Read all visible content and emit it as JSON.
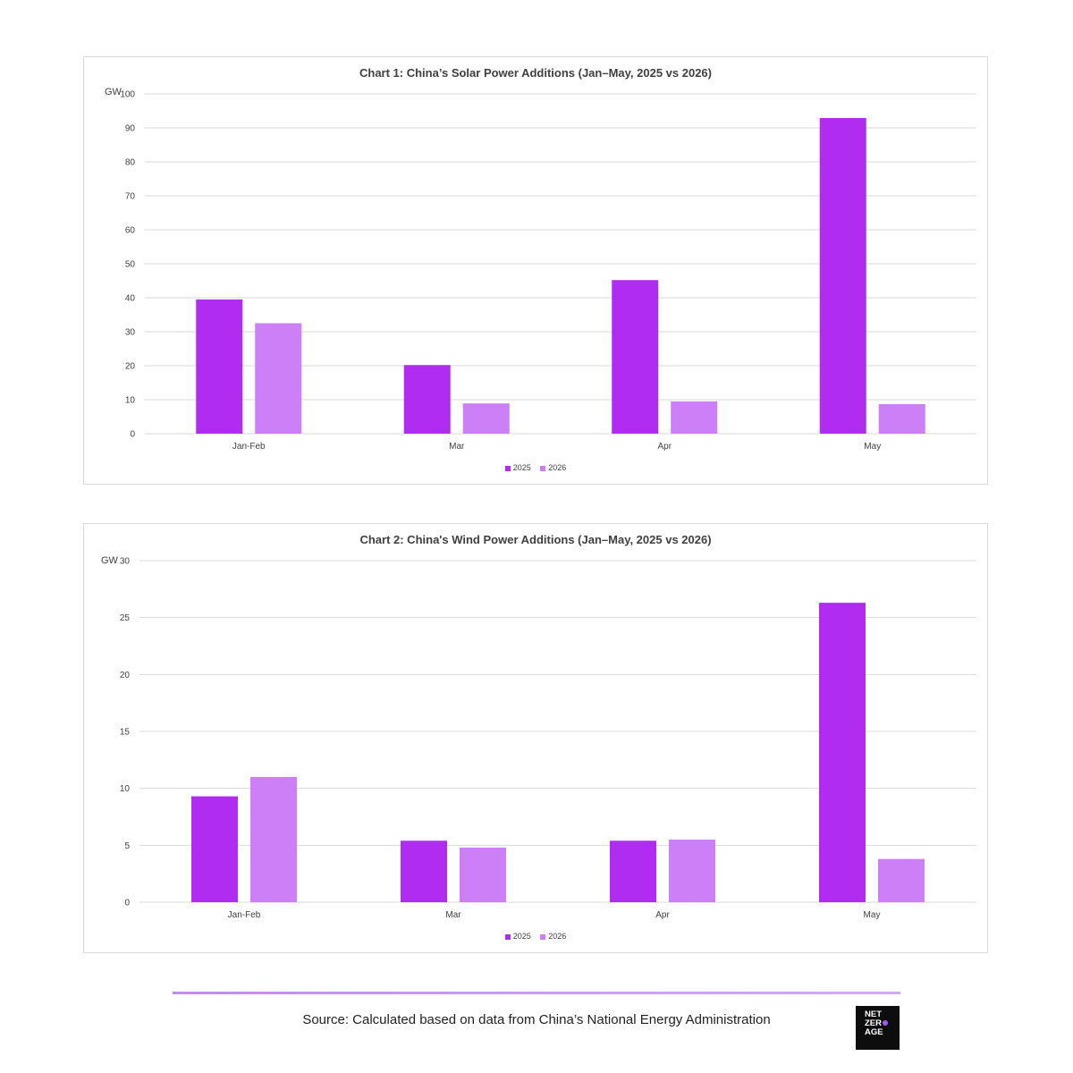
{
  "colors": {
    "series_2025": "#b02cf0",
    "series_2026": "#cd7ff7",
    "grid": "#d9d9d9",
    "text": "#404040",
    "accent_line": "#c58af5"
  },
  "chart_data": [
    {
      "type": "bar",
      "title": "Chart 1: China’s Solar Power Additions (Jan–May, 2025 vs 2026)",
      "ylabel": "GW",
      "categories": [
        "Jan-Feb",
        "Mar",
        "Apr",
        "May"
      ],
      "ylim": [
        0,
        100
      ],
      "yticks": [
        0,
        10,
        20,
        30,
        40,
        50,
        60,
        70,
        80,
        90,
        100
      ],
      "grid": true,
      "legend": "bottom",
      "series": [
        {
          "name": "2025",
          "values": [
            39.5,
            20.2,
            45.2,
            92.9
          ]
        },
        {
          "name": "2026",
          "values": [
            32.5,
            8.9,
            9.5,
            8.7
          ]
        }
      ]
    },
    {
      "type": "bar",
      "title": "Chart 2: China's Wind Power Additions (Jan–May, 2025 vs 2026)",
      "ylabel": "GW",
      "categories": [
        "Jan-Feb",
        "Mar",
        "Apr",
        "May"
      ],
      "ylim": [
        0,
        30
      ],
      "yticks": [
        0,
        5,
        10,
        15,
        20,
        25,
        30
      ],
      "grid": true,
      "legend": "bottom",
      "series": [
        {
          "name": "2025",
          "values": [
            9.3,
            5.4,
            5.4,
            26.3
          ]
        },
        {
          "name": "2026",
          "values": [
            11.0,
            4.8,
            5.5,
            3.8
          ]
        }
      ]
    }
  ],
  "footer": {
    "source": "Source: Calculated based on data from China’s National Energy Administration",
    "logo_lines": [
      "NET",
      "ZER",
      "AGE"
    ]
  }
}
